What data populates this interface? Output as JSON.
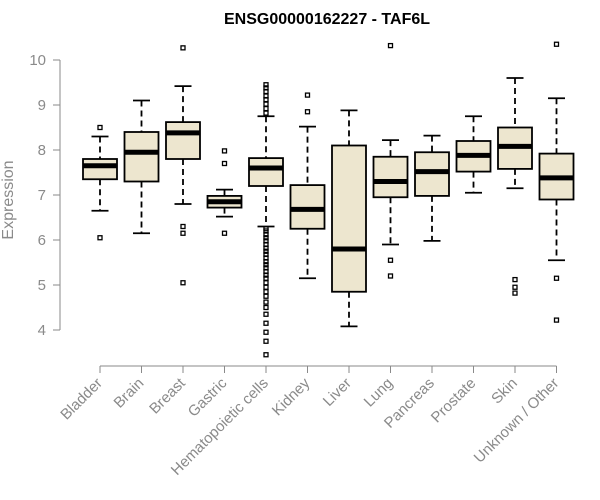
{
  "chart_data": {
    "type": "boxplot",
    "title": "ENSG00000162227 - TAF6L",
    "xlabel": "",
    "ylabel": "Expression",
    "ylim": [
      3.4,
      10.5
    ],
    "yticks": [
      4,
      5,
      6,
      7,
      8,
      9,
      10
    ],
    "box_fill": "#ede6cf",
    "categories": [
      "Bladder",
      "Brain",
      "Breast",
      "Gastric",
      "Hematopoietic cells",
      "Kidney",
      "Liver",
      "Lung",
      "Pancreas",
      "Prostate",
      "Skin",
      "Unknown / Other"
    ],
    "series": [
      {
        "name": "Bladder",
        "whisker_low": 6.65,
        "q1": 7.35,
        "median": 7.65,
        "q3": 7.8,
        "whisker_high": 8.3,
        "outliers": [
          6.05,
          8.5
        ]
      },
      {
        "name": "Brain",
        "whisker_low": 6.15,
        "q1": 7.3,
        "median": 7.95,
        "q3": 8.4,
        "whisker_high": 9.1,
        "outliers": []
      },
      {
        "name": "Breast",
        "whisker_low": 6.8,
        "q1": 7.8,
        "median": 8.38,
        "q3": 8.62,
        "whisker_high": 9.42,
        "outliers": [
          6.3,
          6.15,
          5.05,
          10.27
        ]
      },
      {
        "name": "Gastric",
        "whisker_low": 6.52,
        "q1": 6.72,
        "median": 6.85,
        "q3": 6.98,
        "whisker_high": 7.12,
        "outliers": [
          6.15,
          7.7,
          7.98
        ]
      },
      {
        "name": "Hematopoietic cells",
        "whisker_low": 6.3,
        "q1": 7.2,
        "median": 7.6,
        "q3": 7.82,
        "whisker_high": 8.75,
        "outliers": [
          3.45,
          3.75,
          3.95,
          4.15,
          4.35,
          4.5,
          4.62,
          4.75,
          4.85,
          4.95,
          5.05,
          5.15,
          5.22,
          5.3,
          5.38,
          5.45,
          5.52,
          5.6,
          5.68,
          5.75,
          5.82,
          5.9,
          5.98,
          6.05,
          6.12,
          6.2,
          6.25,
          8.82,
          8.92,
          9.02,
          9.12,
          9.2,
          9.3,
          9.38,
          9.45
        ]
      },
      {
        "name": "Kidney",
        "whisker_low": 5.15,
        "q1": 6.25,
        "median": 6.68,
        "q3": 7.22,
        "whisker_high": 8.52,
        "outliers": [
          8.85,
          9.22
        ]
      },
      {
        "name": "Liver",
        "whisker_low": 4.08,
        "q1": 4.85,
        "median": 5.8,
        "q3": 8.1,
        "whisker_high": 8.88,
        "outliers": []
      },
      {
        "name": "Lung",
        "whisker_low": 5.9,
        "q1": 6.95,
        "median": 7.3,
        "q3": 7.85,
        "whisker_high": 8.22,
        "outliers": [
          5.2,
          5.55,
          10.32
        ]
      },
      {
        "name": "Pancreas",
        "whisker_low": 5.98,
        "q1": 6.98,
        "median": 7.52,
        "q3": 7.95,
        "whisker_high": 8.32,
        "outliers": []
      },
      {
        "name": "Prostate",
        "whisker_low": 7.05,
        "q1": 7.52,
        "median": 7.88,
        "q3": 8.2,
        "whisker_high": 8.75,
        "outliers": []
      },
      {
        "name": "Skin",
        "whisker_low": 7.15,
        "q1": 7.58,
        "median": 8.08,
        "q3": 8.5,
        "whisker_high": 9.6,
        "outliers": [
          4.82,
          4.95,
          5.12
        ]
      },
      {
        "name": "Unknown / Other",
        "whisker_low": 5.55,
        "q1": 6.9,
        "median": 7.38,
        "q3": 7.92,
        "whisker_high": 9.15,
        "outliers": [
          4.22,
          5.15,
          10.35
        ]
      }
    ]
  }
}
